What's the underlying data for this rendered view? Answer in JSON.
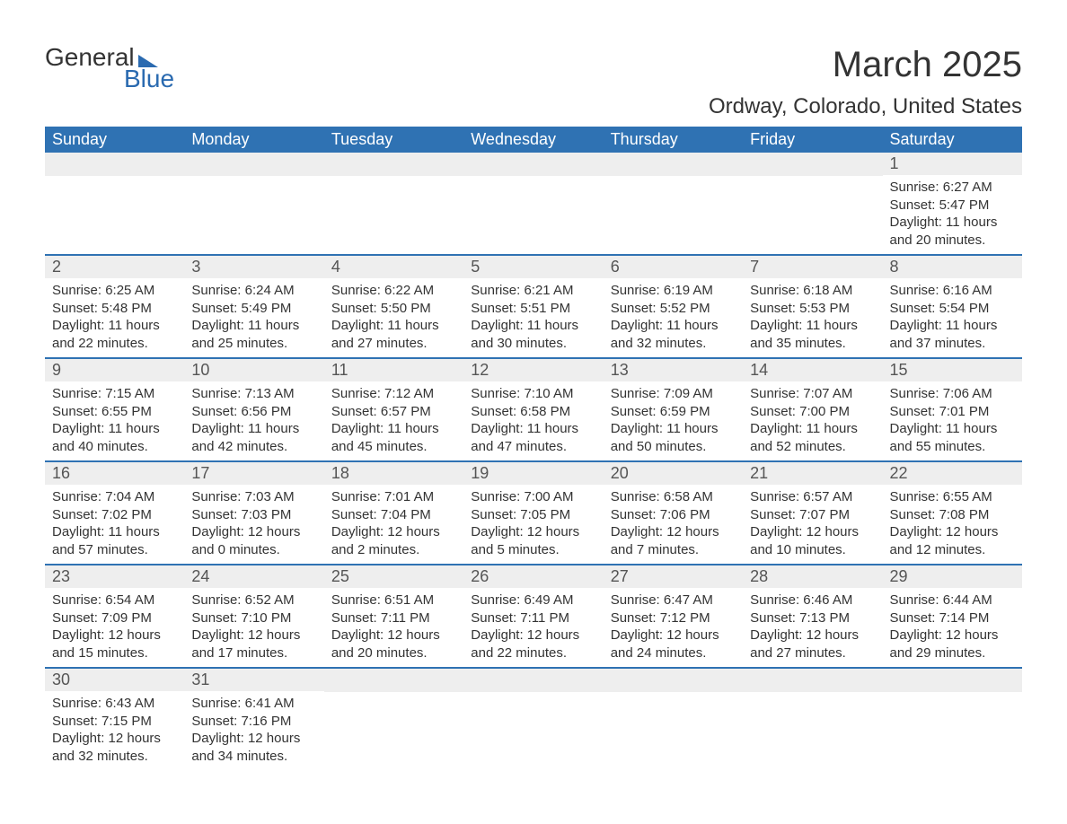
{
  "logo": {
    "line1": "General",
    "line2": "Blue"
  },
  "title": "March 2025",
  "location": "Ordway, Colorado, United States",
  "colors": {
    "header_bg": "#2f72b3",
    "header_text": "#ffffff",
    "daynum_bg": "#eeeeee",
    "border": "#2f72b3",
    "text": "#333333"
  },
  "typography": {
    "title_fontsize": 40,
    "location_fontsize": 24,
    "header_fontsize": 18,
    "daynum_fontsize": 18,
    "body_fontsize": 15
  },
  "layout": {
    "columns": 7,
    "rows": 6,
    "first_day_column_index": 6
  },
  "weekdays": [
    "Sunday",
    "Monday",
    "Tuesday",
    "Wednesday",
    "Thursday",
    "Friday",
    "Saturday"
  ],
  "days": [
    {
      "n": 1,
      "sunrise": "6:27 AM",
      "sunset": "5:47 PM",
      "daylight": "11 hours and 20 minutes."
    },
    {
      "n": 2,
      "sunrise": "6:25 AM",
      "sunset": "5:48 PM",
      "daylight": "11 hours and 22 minutes."
    },
    {
      "n": 3,
      "sunrise": "6:24 AM",
      "sunset": "5:49 PM",
      "daylight": "11 hours and 25 minutes."
    },
    {
      "n": 4,
      "sunrise": "6:22 AM",
      "sunset": "5:50 PM",
      "daylight": "11 hours and 27 minutes."
    },
    {
      "n": 5,
      "sunrise": "6:21 AM",
      "sunset": "5:51 PM",
      "daylight": "11 hours and 30 minutes."
    },
    {
      "n": 6,
      "sunrise": "6:19 AM",
      "sunset": "5:52 PM",
      "daylight": "11 hours and 32 minutes."
    },
    {
      "n": 7,
      "sunrise": "6:18 AM",
      "sunset": "5:53 PM",
      "daylight": "11 hours and 35 minutes."
    },
    {
      "n": 8,
      "sunrise": "6:16 AM",
      "sunset": "5:54 PM",
      "daylight": "11 hours and 37 minutes."
    },
    {
      "n": 9,
      "sunrise": "7:15 AM",
      "sunset": "6:55 PM",
      "daylight": "11 hours and 40 minutes."
    },
    {
      "n": 10,
      "sunrise": "7:13 AM",
      "sunset": "6:56 PM",
      "daylight": "11 hours and 42 minutes."
    },
    {
      "n": 11,
      "sunrise": "7:12 AM",
      "sunset": "6:57 PM",
      "daylight": "11 hours and 45 minutes."
    },
    {
      "n": 12,
      "sunrise": "7:10 AM",
      "sunset": "6:58 PM",
      "daylight": "11 hours and 47 minutes."
    },
    {
      "n": 13,
      "sunrise": "7:09 AM",
      "sunset": "6:59 PM",
      "daylight": "11 hours and 50 minutes."
    },
    {
      "n": 14,
      "sunrise": "7:07 AM",
      "sunset": "7:00 PM",
      "daylight": "11 hours and 52 minutes."
    },
    {
      "n": 15,
      "sunrise": "7:06 AM",
      "sunset": "7:01 PM",
      "daylight": "11 hours and 55 minutes."
    },
    {
      "n": 16,
      "sunrise": "7:04 AM",
      "sunset": "7:02 PM",
      "daylight": "11 hours and 57 minutes."
    },
    {
      "n": 17,
      "sunrise": "7:03 AM",
      "sunset": "7:03 PM",
      "daylight": "12 hours and 0 minutes."
    },
    {
      "n": 18,
      "sunrise": "7:01 AM",
      "sunset": "7:04 PM",
      "daylight": "12 hours and 2 minutes."
    },
    {
      "n": 19,
      "sunrise": "7:00 AM",
      "sunset": "7:05 PM",
      "daylight": "12 hours and 5 minutes."
    },
    {
      "n": 20,
      "sunrise": "6:58 AM",
      "sunset": "7:06 PM",
      "daylight": "12 hours and 7 minutes."
    },
    {
      "n": 21,
      "sunrise": "6:57 AM",
      "sunset": "7:07 PM",
      "daylight": "12 hours and 10 minutes."
    },
    {
      "n": 22,
      "sunrise": "6:55 AM",
      "sunset": "7:08 PM",
      "daylight": "12 hours and 12 minutes."
    },
    {
      "n": 23,
      "sunrise": "6:54 AM",
      "sunset": "7:09 PM",
      "daylight": "12 hours and 15 minutes."
    },
    {
      "n": 24,
      "sunrise": "6:52 AM",
      "sunset": "7:10 PM",
      "daylight": "12 hours and 17 minutes."
    },
    {
      "n": 25,
      "sunrise": "6:51 AM",
      "sunset": "7:11 PM",
      "daylight": "12 hours and 20 minutes."
    },
    {
      "n": 26,
      "sunrise": "6:49 AM",
      "sunset": "7:11 PM",
      "daylight": "12 hours and 22 minutes."
    },
    {
      "n": 27,
      "sunrise": "6:47 AM",
      "sunset": "7:12 PM",
      "daylight": "12 hours and 24 minutes."
    },
    {
      "n": 28,
      "sunrise": "6:46 AM",
      "sunset": "7:13 PM",
      "daylight": "12 hours and 27 minutes."
    },
    {
      "n": 29,
      "sunrise": "6:44 AM",
      "sunset": "7:14 PM",
      "daylight": "12 hours and 29 minutes."
    },
    {
      "n": 30,
      "sunrise": "6:43 AM",
      "sunset": "7:15 PM",
      "daylight": "12 hours and 32 minutes."
    },
    {
      "n": 31,
      "sunrise": "6:41 AM",
      "sunset": "7:16 PM",
      "daylight": "12 hours and 34 minutes."
    }
  ],
  "labels": {
    "sunrise_prefix": "Sunrise: ",
    "sunset_prefix": "Sunset: ",
    "daylight_prefix": "Daylight: "
  }
}
